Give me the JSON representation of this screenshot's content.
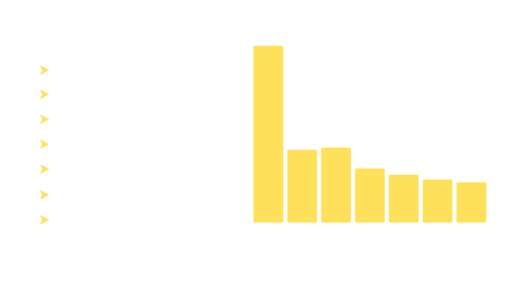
{
  "chart_data": {
    "type": "bar",
    "values": [
      255,
      105,
      108,
      78,
      69,
      62,
      58
    ],
    "color": "#ffe05a",
    "ylim": [
      0,
      255
    ]
  }
}
